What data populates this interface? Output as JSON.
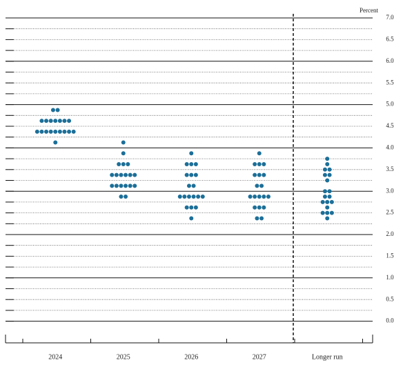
{
  "chart_data": {
    "type": "dot",
    "y_label": "Percent",
    "categories": [
      "2024",
      "2025",
      "2026",
      "2027",
      "Longer run"
    ],
    "values": [
      [
        4.875,
        4.875,
        4.625,
        4.625,
        4.625,
        4.625,
        4.625,
        4.625,
        4.625,
        4.375,
        4.375,
        4.375,
        4.375,
        4.375,
        4.375,
        4.375,
        4.375,
        4.375,
        4.125
      ],
      [
        4.125,
        3.875,
        3.625,
        3.625,
        3.625,
        3.375,
        3.375,
        3.375,
        3.375,
        3.375,
        3.375,
        3.125,
        3.125,
        3.125,
        3.125,
        3.125,
        3.125,
        2.875,
        2.875
      ],
      [
        3.875,
        3.625,
        3.625,
        3.625,
        3.375,
        3.375,
        3.375,
        3.125,
        3.125,
        2.875,
        2.875,
        2.875,
        2.875,
        2.875,
        2.875,
        2.625,
        2.625,
        2.625,
        2.375
      ],
      [
        3.875,
        3.625,
        3.625,
        3.625,
        3.375,
        3.375,
        3.375,
        3.125,
        3.125,
        2.875,
        2.875,
        2.875,
        2.875,
        2.875,
        2.625,
        2.625,
        2.625,
        2.375,
        2.375
      ],
      [
        3.75,
        3.625,
        3.5,
        3.5,
        3.375,
        3.375,
        3.25,
        3.0,
        3.0,
        2.875,
        2.875,
        2.75,
        2.75,
        2.75,
        2.625,
        2.5,
        2.5,
        2.5,
        2.375
      ]
    ],
    "color": "#1c6f98",
    "ylim": [
      -0.5,
      7
    ],
    "yticks": [
      {
        "value": 0,
        "label": "0.0"
      },
      {
        "value": 0.5,
        "label": "0.5"
      },
      {
        "value": 1,
        "label": "1.0"
      },
      {
        "value": 1.5,
        "label": "1.5"
      },
      {
        "value": 2,
        "label": "2.0"
      },
      {
        "value": 2.5,
        "label": "2.5"
      },
      {
        "value": 3,
        "label": "3.0"
      },
      {
        "value": 3.5,
        "label": "3.5"
      },
      {
        "value": 4,
        "label": "4.0"
      },
      {
        "value": 4.5,
        "label": "4.5"
      },
      {
        "value": 5,
        "label": "5.0"
      },
      {
        "value": 5.5,
        "label": "5.5"
      },
      {
        "value": 6,
        "label": "6.0"
      },
      {
        "value": 6.5,
        "label": "6.5"
      },
      {
        "value": 7,
        "label": "7.0"
      }
    ]
  }
}
